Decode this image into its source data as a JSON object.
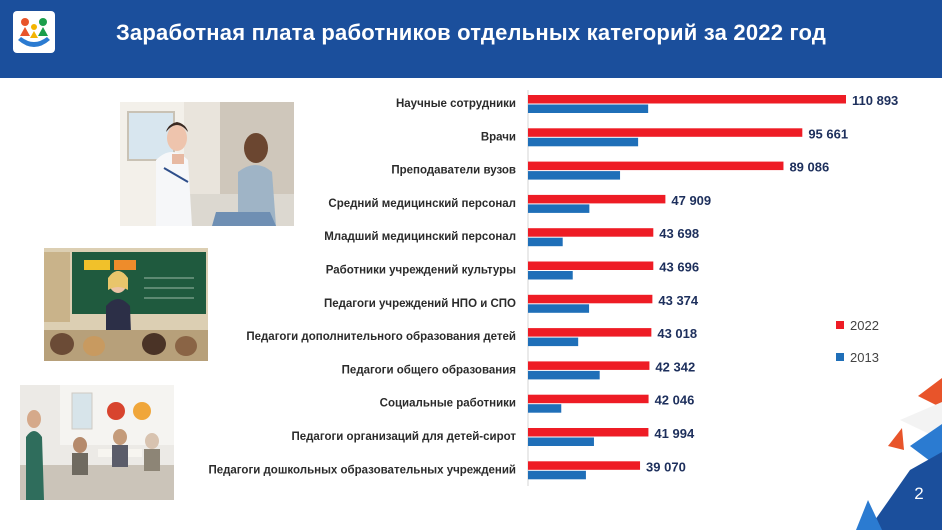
{
  "header": {
    "title": "Заработная плата работников отдельных категорий за 2022 год"
  },
  "page_number": "2",
  "logo": {
    "icon": "family-hands-logo-icon"
  },
  "photos": [
    {
      "icon": "doctor-patient-photo"
    },
    {
      "icon": "teacher-classroom-photo"
    },
    {
      "icon": "social-worker-meeting-photo"
    }
  ],
  "colors": {
    "header": "#1b4f9c",
    "series_2022": "#ee1c25",
    "series_2013": "#1f6fb8",
    "value_text": "#1d2f5c",
    "accent_orange": "#e8542a"
  },
  "chart_data": {
    "type": "bar",
    "orientation": "horizontal",
    "categories": [
      "Научные сотрудники",
      "Врачи",
      "Преподаватели вузов",
      "Средний медицинский персонал",
      "Младший медицинский персонал",
      "Работники учреждений культуры",
      "Педагоги учреждений НПО и СПО",
      "Педагоги дополнительного образования детей",
      "Педагоги общего образования",
      "Социальные работники",
      "Педагоги организаций для детей-сирот",
      "Педагоги дошкольных образовательных учреждений"
    ],
    "series": [
      {
        "name": "2022",
        "color": "#ee1c25",
        "values": [
          110893,
          95661,
          89086,
          47909,
          43698,
          43696,
          43374,
          43018,
          42342,
          42046,
          41994,
          39070
        ],
        "labels": [
          "110 893",
          "95 661",
          "89 086",
          "47 909",
          "43 698",
          "43 696",
          "43 374",
          "43 018",
          "42 342",
          "42 046",
          "41 994",
          "39 070"
        ]
      },
      {
        "name": "2013",
        "color": "#1f6fb8",
        "values": [
          41900,
          38400,
          32100,
          21400,
          12100,
          15600,
          21300,
          17500,
          25000,
          11600,
          23000,
          20200
        ]
      }
    ],
    "legend": {
      "position": "right"
    },
    "grid": false
  }
}
